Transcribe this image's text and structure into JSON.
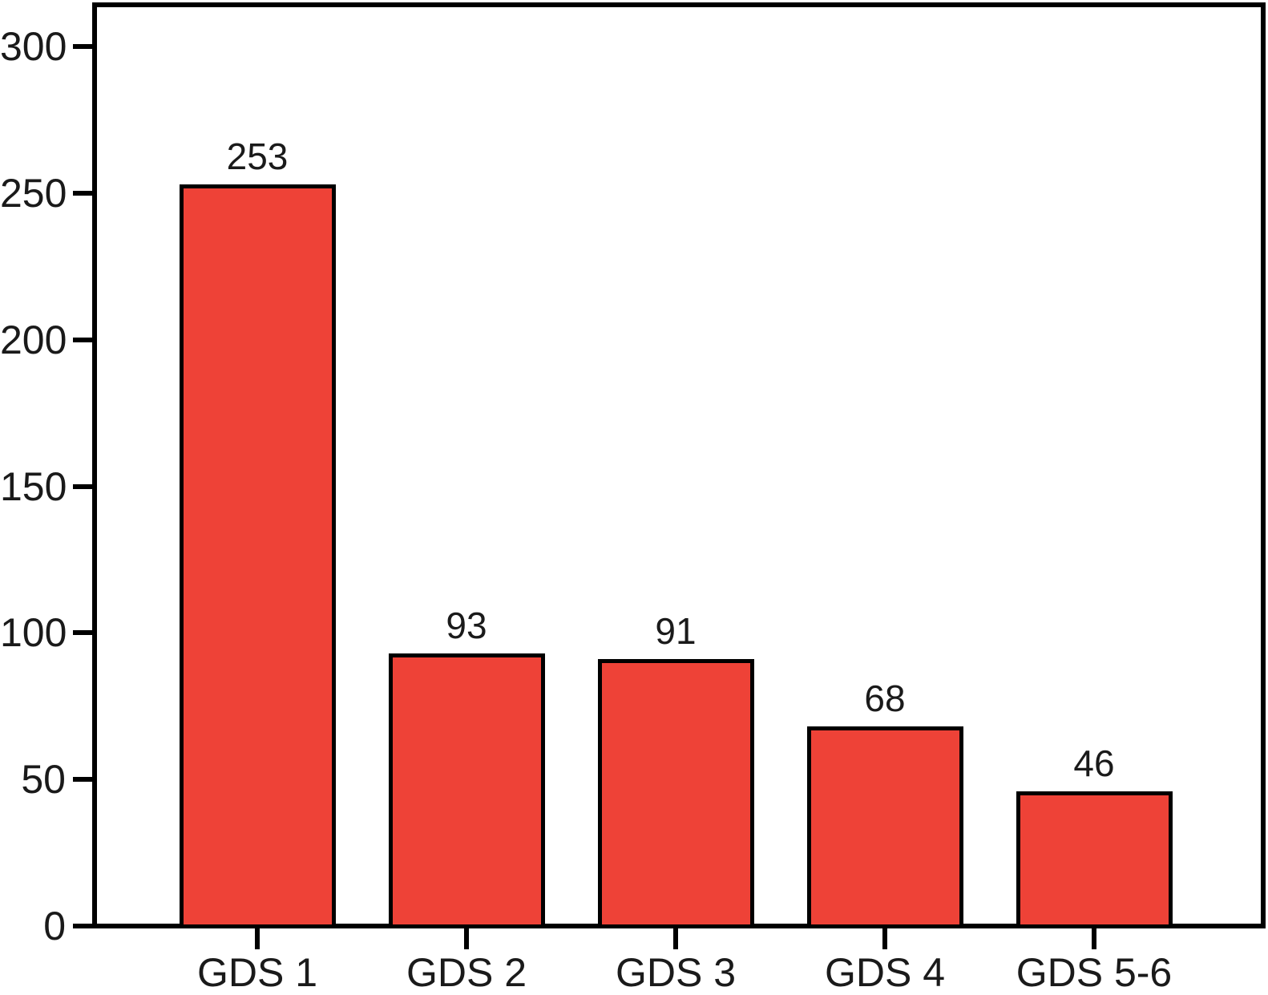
{
  "chart_data": {
    "type": "bar",
    "title": "",
    "xlabel": "",
    "ylabel": "",
    "categories": [
      "GDS 1",
      "GDS 2",
      "GDS 3",
      "GDS 4",
      "GDS 5-6"
    ],
    "values": [
      253,
      93,
      91,
      68,
      46
    ],
    "bar_value_labels": [
      "253",
      "93",
      "91",
      "68",
      "46"
    ],
    "ytick_labels": [
      "0",
      "50",
      "100",
      "150",
      "200",
      "250",
      "300"
    ],
    "ytick_values": [
      0,
      50,
      100,
      150,
      200,
      250,
      300
    ],
    "ylim": [
      0,
      313
    ],
    "grid": false,
    "legend_position": "none",
    "colors": {
      "bar_fill": "#ee4237",
      "bar_border": "#000000",
      "axis_line": "#000000",
      "tick_label_text": "#1a1a1a",
      "background": "#ffffff"
    }
  }
}
